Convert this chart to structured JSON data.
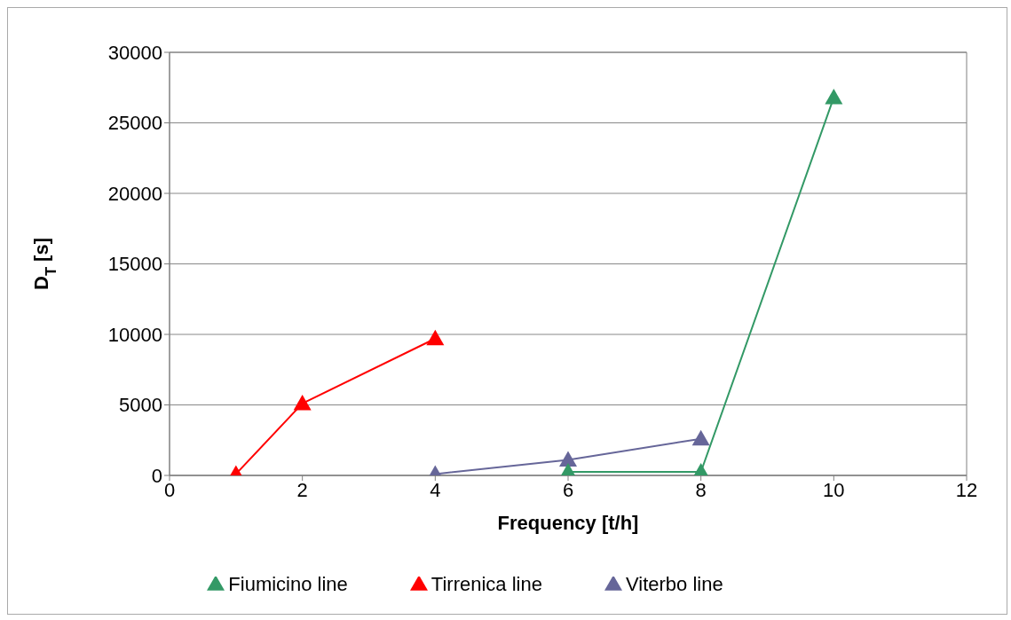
{
  "chart_data": {
    "type": "line",
    "xlabel": "Frequency [t/h]",
    "ylabel": "D$_{T}$ [s]",
    "xlim": [
      0,
      12
    ],
    "xticks": [
      0,
      2,
      4,
      6,
      8,
      10,
      12
    ],
    "ylim": [
      0,
      30000
    ],
    "yticks": [
      0,
      5000,
      10000,
      15000,
      20000,
      25000,
      30000
    ],
    "grid": "y",
    "legend": "bottom",
    "marker": "triangle",
    "line_style": "solid",
    "series": [
      {
        "name": "Viterbo line",
        "color": "#666699",
        "x": [
          4,
          6,
          8
        ],
        "values": [
          100,
          1100,
          2600
        ]
      },
      {
        "name": "Fiumicino line",
        "color": "#339966",
        "x": [
          6,
          8,
          10
        ],
        "values": [
          250,
          250,
          26800
        ]
      },
      {
        "name": "Tirrenica line",
        "color": "#ff0000",
        "x": [
          1,
          2,
          4
        ],
        "values": [
          100,
          5100,
          9700
        ]
      }
    ]
  }
}
